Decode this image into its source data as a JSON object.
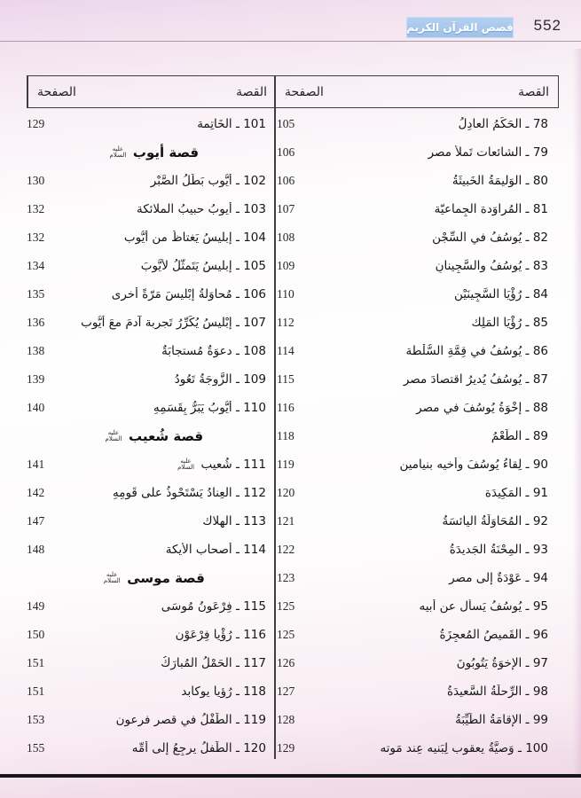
{
  "page": {
    "number": "552",
    "badge": "قصص القرآن الكريم"
  },
  "table": {
    "story_header": "القصة",
    "page_header": "الصفحة",
    "separator": "ـ",
    "honorific": "عليه السلام",
    "columns": {
      "right": {
        "rows": [
          {
            "n": "78",
            "t": "الحَكَمُ العادِلُ",
            "p": "105"
          },
          {
            "n": "79",
            "t": "الشائعات تَملأُ مصر",
            "p": "106"
          },
          {
            "n": "80",
            "t": "الوَليمَةُ الخَبيثَةُ",
            "p": "106"
          },
          {
            "n": "81",
            "t": "المُراوَدة الجِماعيّة",
            "p": "107"
          },
          {
            "n": "82",
            "t": "يُوسُفُ في السِّجْنِ",
            "p": "108"
          },
          {
            "n": "83",
            "t": "يُوسُفُ والسَّجِينانِ",
            "p": "109"
          },
          {
            "n": "84",
            "t": "رُؤْيَا السَّجِينَيْنِ",
            "p": "110"
          },
          {
            "n": "85",
            "t": "رُؤْيَا المَلِك",
            "p": "112"
          },
          {
            "n": "86",
            "t": "يُوسُفُ في قِمَّةِ السُّلْطة",
            "p": "114"
          },
          {
            "n": "87",
            "t": "يُوسُفُ يُديرُ اقتصادَ مصر",
            "p": "115"
          },
          {
            "n": "88",
            "t": "إخْوَةُ يُوسُفَ في مصر",
            "p": "116"
          },
          {
            "n": "89",
            "t": "الطُّعْمُ",
            "p": "118"
          },
          {
            "n": "90",
            "t": "لِقاءُ يُوسُفَ وأخيه بنيامين",
            "p": "119"
          },
          {
            "n": "91",
            "t": "المَكِيدَة",
            "p": "120"
          },
          {
            "n": "92",
            "t": "المُحَاوَلَةُ اليائسَةُ",
            "p": "121"
          },
          {
            "n": "93",
            "t": "المِحْنَةُ الجَديدَةُ",
            "p": "122"
          },
          {
            "n": "94",
            "t": "عَوْدَةٌ إلى مصر",
            "p": "123"
          },
          {
            "n": "95",
            "t": "يُوسُفُ يَسأل عن أبيه",
            "p": "125"
          },
          {
            "n": "96",
            "t": "القَميصُ المُعجِزَةُ",
            "p": "125"
          },
          {
            "n": "97",
            "t": "الإخوَةُ يَتُوبُونَ",
            "p": "126"
          },
          {
            "n": "98",
            "t": "الرِّحلَةُ السَّعيدَةُ",
            "p": "127"
          },
          {
            "n": "99",
            "t": "الإقامَةُ الطَّيِّبَةُ",
            "p": "128"
          },
          {
            "n": "100",
            "t": "وَصيَّةُ يعقوب لِبَنيه عِند مَوته",
            "p": "129"
          }
        ]
      },
      "left": {
        "rows": [
          {
            "n": "101",
            "t": "الخَاتِمة",
            "p": "129"
          },
          {
            "h": "قصة أيوب",
            "hon": true
          },
          {
            "n": "102",
            "t": "أيُّوب بَطَلُ الصَّبْرِ",
            "p": "130"
          },
          {
            "n": "103",
            "t": "أيوبُ حبيبُ الملائكة",
            "p": "132"
          },
          {
            "n": "104",
            "t": "إبليسُ يَغتاظُ من أيُّوب",
            "p": "132"
          },
          {
            "n": "105",
            "t": "إبليسُ يَتَمثَّلُ لأيُّوبَ",
            "p": "134"
          },
          {
            "n": "106",
            "t": "مُحاوَلةُ إبْليسَ مَرّةً أُخرى",
            "p": "135"
          },
          {
            "n": "107",
            "t": "إبْليسُ يُكَرِّرُ تَجربة آدمَ معَ أيُّوب",
            "p": "136"
          },
          {
            "n": "108",
            "t": "دعوَةٌ مُستجابَةٌ",
            "p": "138"
          },
          {
            "n": "109",
            "t": "الزَّوجَةُ تَعُودُ",
            "p": "139"
          },
          {
            "n": "110",
            "t": "أيُّوبُ يَبَرُّ بِقَسَمِهِ",
            "p": "140"
          },
          {
            "h": "قصة شُعيب",
            "hon": true
          },
          {
            "n": "111",
            "t": "شُعيب",
            "hon": true,
            "p": "141"
          },
          {
            "n": "112",
            "t": "العِنادُ يَسْتَحْوِذُ على قَومِهِ",
            "p": "142"
          },
          {
            "n": "113",
            "t": "الهلاك",
            "p": "147"
          },
          {
            "n": "114",
            "t": "أصحاب الأيكة",
            "p": "148"
          },
          {
            "h": "قصة موسى",
            "hon": true
          },
          {
            "n": "115",
            "t": "فِرْعَونُ مُوسَى",
            "p": "149"
          },
          {
            "n": "116",
            "t": "رُؤْيا فِرْعَوْن",
            "p": "150"
          },
          {
            "n": "117",
            "t": "الحَمْلُ المُبارَكُ",
            "p": "151"
          },
          {
            "n": "118",
            "t": "رُؤيا يوكابد",
            "p": "151"
          },
          {
            "n": "119",
            "t": "الطِّفْلُ في قصر فرعون",
            "p": "153"
          },
          {
            "n": "120",
            "t": "الطِّفلُ يرجِعُ إلى أُمِّه",
            "p": "155"
          }
        ]
      }
    }
  }
}
